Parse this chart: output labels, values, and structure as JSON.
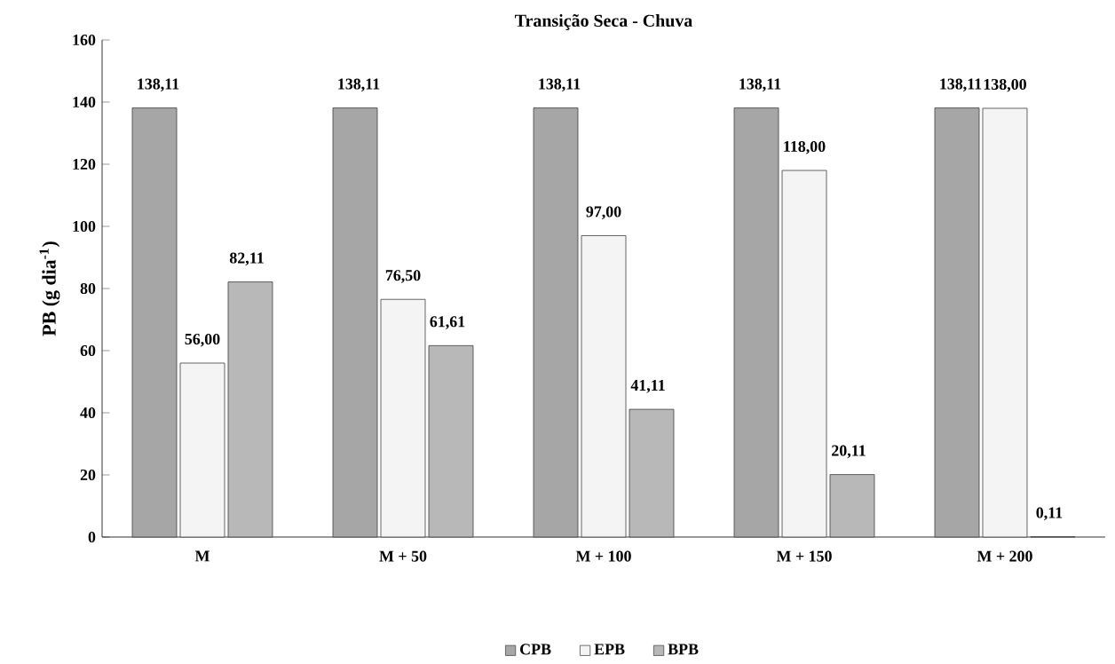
{
  "chart_data": {
    "type": "bar",
    "title": "Transição Seca - Chuva",
    "ylabel": "PB (g dia$^{-1}$)",
    "categories": [
      "M",
      "M + 50",
      "M + 100",
      "M + 150",
      "M + 200"
    ],
    "series": [
      {
        "name": "CPB",
        "color": "#a6a6a6",
        "values": [
          138.11,
          138.11,
          138.11,
          138.11,
          138.11
        ],
        "value_labels": [
          "138,11",
          "138,11",
          "138,11",
          "138,11",
          "138,11"
        ]
      },
      {
        "name": "EPB",
        "color": "#f4f4f4",
        "values": [
          56.0,
          76.5,
          97.0,
          118.0,
          138.0
        ],
        "value_labels": [
          "56,00",
          "76,50",
          "97,00",
          "118,00",
          "138,00"
        ]
      },
      {
        "name": "BPB",
        "color": "#b8b8b8",
        "values": [
          82.11,
          61.61,
          41.11,
          20.11,
          0.11
        ],
        "value_labels": [
          "82,11",
          "61,61",
          "41,11",
          "20,11",
          "0,11"
        ]
      }
    ],
    "ylim": [
      0,
      160
    ],
    "yticks": [
      0,
      20,
      40,
      60,
      80,
      100,
      120,
      140,
      160
    ],
    "grid": false,
    "legend": "bottom"
  }
}
